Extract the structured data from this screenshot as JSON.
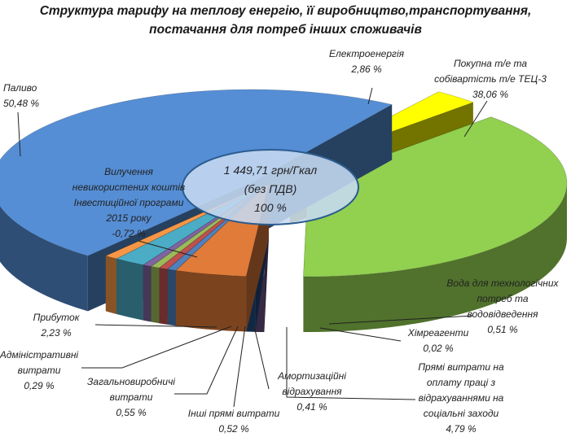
{
  "title_lines": [
    "Структура тарифу на теплову енергію, її виробництво,транспортування,",
    "постачання для потреб інших споживачів"
  ],
  "center_label": [
    "1 449,71 грн/Гкал",
    "(без ПДВ)",
    "100 %"
  ],
  "chart_data": {
    "type": "pie",
    "title": "Структура тарифу на теплову енергію, її виробництво,транспортування, постачання для потреб інших споживачів",
    "total": "1 449,71 грн/Гкал (без ПДВ) 100 %",
    "slices": [
      {
        "label_lines": [
          "Електроенергія"
        ],
        "value": 2.86,
        "value_text": "2,86 %",
        "color": "#ffff00"
      },
      {
        "label_lines": [
          "Покупна т/е та",
          "собівартість т/е ТЕЦ-3"
        ],
        "value": 38.06,
        "value_text": "38,06 %",
        "color": "#92d050"
      },
      {
        "label_lines": [
          "Вода для технологічних",
          "потреб  та",
          "водовідведення"
        ],
        "value": 0.51,
        "value_text": "0,51 %",
        "color": "#604a7b"
      },
      {
        "label_lines": [
          "Хімреагенти"
        ],
        "value": 0.02,
        "value_text": "0,02 %",
        "color": "#1f497d"
      },
      {
        "label_lines": [
          "Прямі витрати на",
          "оплату праці з",
          "відрахуваннями на",
          "соціальні заходи"
        ],
        "value": 4.79,
        "value_text": "4,79 %",
        "color": "#e07b39"
      },
      {
        "label_lines": [
          "Амортизаційні",
          "відрахування"
        ],
        "value": 0.41,
        "value_text": "0,41 %",
        "color": "#4f81bd"
      },
      {
        "label_lines": [
          "Інші прямі витрати"
        ],
        "value": 0.52,
        "value_text": "0,52 %",
        "color": "#c0504d"
      },
      {
        "label_lines": [
          "Загальновиробничі",
          "витрати"
        ],
        "value": 0.55,
        "value_text": "0,55 %",
        "color": "#9bbb59"
      },
      {
        "label_lines": [
          "Адміністративні",
          "витрати"
        ],
        "value": 0.29,
        "value_text": "0,29 %",
        "color": "#8064a2"
      },
      {
        "label_lines": [
          "Прибуток"
        ],
        "value": 2.23,
        "value_text": "2,23 %",
        "color": "#4bacc6"
      },
      {
        "label_lines": [
          "Вилучення",
          "невикористених коштів",
          "Інвестиційної програми",
          "2015 року"
        ],
        "value": -0.72,
        "value_text": "-0,72 %",
        "color": "#f79646"
      },
      {
        "label_lines": [
          "Паливо"
        ],
        "value": 50.48,
        "value_text": "50,48 %",
        "color": "#558ed5"
      }
    ]
  }
}
